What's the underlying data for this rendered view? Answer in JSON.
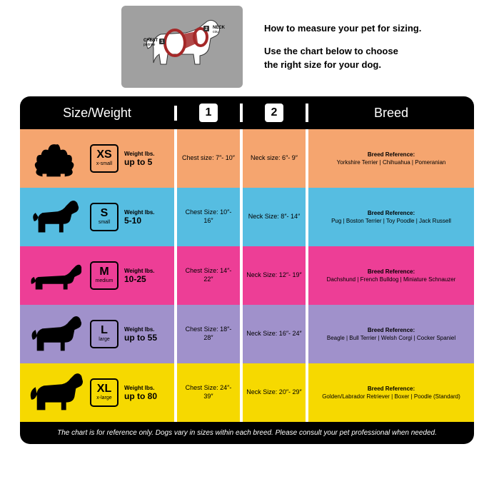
{
  "top": {
    "line1": "How to measure your pet for sizing.",
    "line2": "Use the chart below to choose",
    "line3": "the right size for your dog.",
    "diagram_bg": "#a0a0a0",
    "neck_label": "NECK",
    "neck_sub": "cou",
    "chest_label": "CHEST",
    "chest_sub": "poitrine",
    "badge1": "1",
    "badge2": "2"
  },
  "header": {
    "col1": "Size/Weight",
    "col2": "1",
    "col3": "2",
    "col4": "Breed",
    "bg": "#000000",
    "fg": "#ffffff"
  },
  "rows": [
    {
      "bg": "#f5a56f",
      "size_code": "XS",
      "size_label": "x-small",
      "weight_label": "Weight lbs.",
      "weight_value": "up to 5",
      "chest": "Chest size: 7″- 10″",
      "neck": "Neck size: 6″- 9″",
      "breed_title": "Breed Reference:",
      "breed_list": "Yorkshire Terrier | Chihuahua | Pomeranian",
      "sil": "pom"
    },
    {
      "bg": "#56bde1",
      "size_code": "S",
      "size_label": "small",
      "weight_label": "Weight lbs.",
      "weight_value": "5-10",
      "chest": "Chest Size: 10″- 16″",
      "neck": "Neck Size: 8″- 14″",
      "breed_title": "Breed Reference:",
      "breed_list": "Pug | Boston Terrier | Toy Poodle | Jack Russell",
      "sil": "small"
    },
    {
      "bg": "#ed3e96",
      "size_code": "M",
      "size_label": "medium",
      "weight_label": "Weight lbs.",
      "weight_value": "10-25",
      "chest": "Chest Size: 14″- 22″",
      "neck": "Neck Size: 12″- 19″",
      "breed_title": "Breed Reference:",
      "breed_list": "Dachshund | French Bulldog | Miniature Schnauzer",
      "sil": "dachs"
    },
    {
      "bg": "#a091cb",
      "size_code": "L",
      "size_label": "large",
      "weight_label": "Weight lbs.",
      "weight_value": "up to 55",
      "chest": "Chest Size: 18″- 28″",
      "neck": "Neck Size: 16″- 24″",
      "breed_title": "Breed Reference:",
      "breed_list": "Beagle | Bull Terrier | Welsh Corgi | Cocker Spaniel",
      "sil": "large"
    },
    {
      "bg": "#f6d900",
      "size_code": "XL",
      "size_label": "x-large",
      "weight_label": "Weight lbs.",
      "weight_value": "up to 80",
      "chest": "Chest Size: 24″- 39″",
      "neck": "Neck Size: 20″- 29″",
      "breed_title": "Breed Reference:",
      "breed_list": "Golden/Labrador Retriever | Boxer | Poodle (Standard)",
      "sil": "lab"
    }
  ],
  "footer": "The chart is for reference only.  Dogs vary in sizes within each breed.  Please consult your pet professional when needed.",
  "divider_color": "#ffffff",
  "silhouette_color": "#000000"
}
